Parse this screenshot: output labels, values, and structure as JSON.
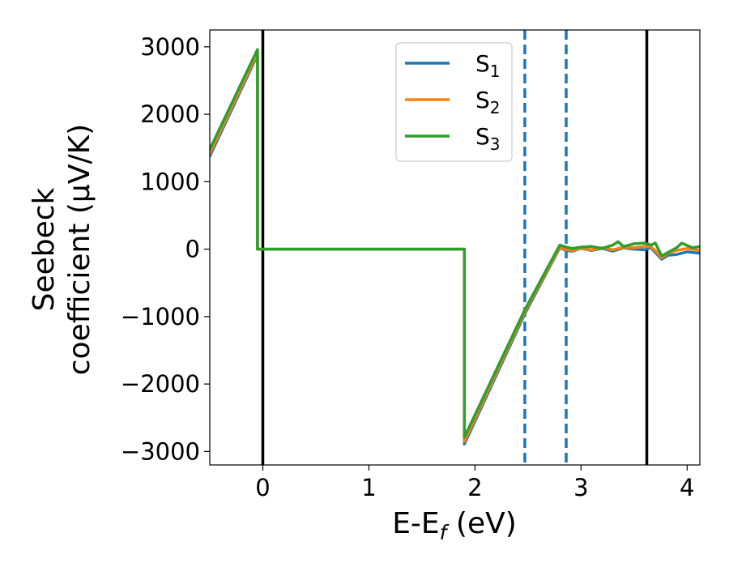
{
  "chart_data": {
    "type": "line",
    "title": "",
    "xlabel": {
      "main": "E-E",
      "sub": "f",
      "suffix": " (eV)"
    },
    "ylabel": {
      "line1": "Seebeck",
      "line2": "coefficient  (μV/K)"
    },
    "xlim": [
      -0.5,
      4.12
    ],
    "ylim": [
      -3200,
      3250
    ],
    "xticks": [
      0,
      1,
      2,
      3,
      4
    ],
    "xtick_labels": [
      "0",
      "1",
      "2",
      "3",
      "4"
    ],
    "yticks": [
      -3000,
      -2000,
      -1000,
      0,
      1000,
      2000,
      3000
    ],
    "ytick_labels": [
      "−3000",
      "−2000",
      "−1000",
      "0",
      "1000",
      "2000",
      "3000"
    ],
    "grid": false,
    "legend_position": "top-center",
    "vertical_lines": [
      {
        "x": 0.0,
        "style": "solid",
        "color": "#000000"
      },
      {
        "x": 2.47,
        "style": "dashed",
        "color": "#1f77b4"
      },
      {
        "x": 2.86,
        "style": "dashed",
        "color": "#1f77b4"
      },
      {
        "x": 3.62,
        "style": "solid",
        "color": "#000000"
      }
    ],
    "series": [
      {
        "name": "S",
        "sub": "1",
        "color": "#1f77b4",
        "x": [
          -0.5,
          -0.05,
          -0.05,
          1.9,
          1.9,
          2.47,
          2.8,
          2.86,
          2.92,
          3.0,
          3.1,
          3.2,
          3.3,
          3.4,
          3.5,
          3.6,
          3.66,
          3.7,
          3.76,
          3.82,
          3.9,
          4.0,
          4.12
        ],
        "y": [
          1380,
          2880,
          0,
          0,
          -2890,
          -960,
          20,
          -20,
          -30,
          10,
          -20,
          10,
          -30,
          20,
          0,
          -10,
          20,
          -50,
          -150,
          -90,
          -80,
          -40,
          -60
        ]
      },
      {
        "name": "S",
        "sub": "2",
        "color": "#ff7f0e",
        "x": [
          -0.5,
          -0.05,
          -0.05,
          1.9,
          1.9,
          2.47,
          2.8,
          2.86,
          2.92,
          3.0,
          3.1,
          3.2,
          3.3,
          3.4,
          3.5,
          3.6,
          3.66,
          3.7,
          3.76,
          3.82,
          3.9,
          4.0,
          4.12
        ],
        "y": [
          1420,
          2910,
          0,
          0,
          -2850,
          -930,
          30,
          -10,
          -20,
          10,
          -10,
          20,
          -10,
          30,
          20,
          40,
          30,
          -20,
          -130,
          -60,
          -20,
          10,
          -20
        ]
      },
      {
        "name": "S",
        "sub": "3",
        "color": "#2ca02c",
        "x": [
          -0.5,
          -0.05,
          -0.05,
          1.9,
          1.9,
          2.47,
          2.8,
          2.86,
          2.92,
          3.0,
          3.1,
          3.2,
          3.3,
          3.35,
          3.4,
          3.5,
          3.6,
          3.66,
          3.7,
          3.76,
          3.82,
          3.9,
          3.95,
          4.05,
          4.12
        ],
        "y": [
          1480,
          2960,
          0,
          0,
          -2790,
          -900,
          60,
          30,
          10,
          30,
          40,
          10,
          60,
          110,
          40,
          80,
          90,
          60,
          90,
          -100,
          -50,
          20,
          90,
          20,
          40
        ]
      }
    ]
  }
}
